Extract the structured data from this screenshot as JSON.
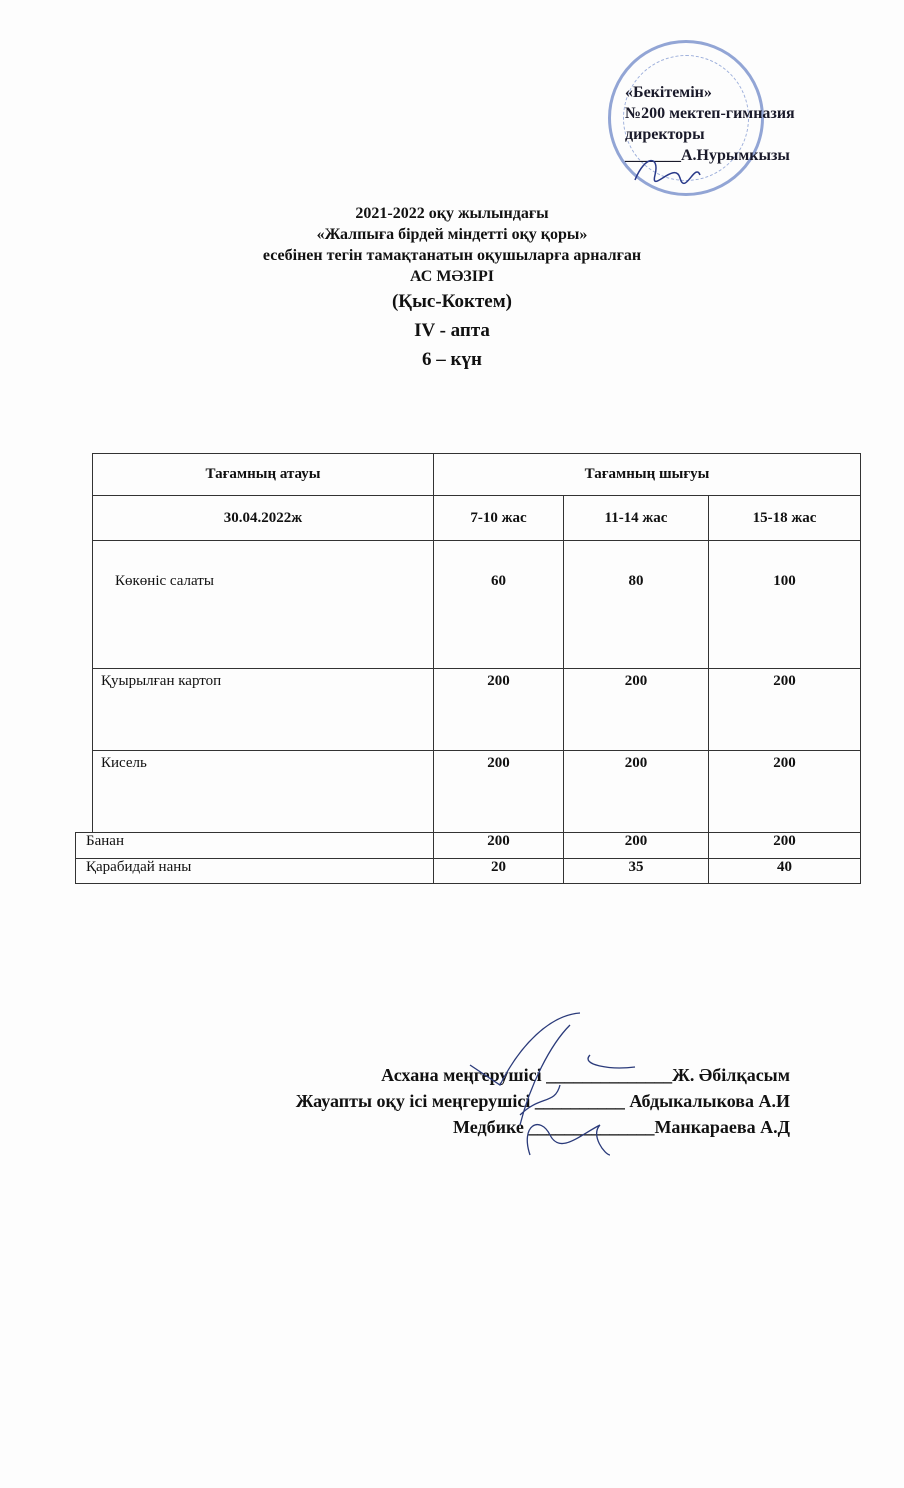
{
  "approval": {
    "line1": "«Бекітемін»",
    "line2": "№200 мектеп-гимназия",
    "line3": "директоры",
    "line4": "_______А.Нурымкызы"
  },
  "title": {
    "line1": "2021-2022 оқу жылындағы",
    "line2": "«Жалпыға бірдей міндетті оқу қоры»",
    "line3": "есебінен тегін тамақтанатын оқушыларға арналған",
    "line4": "АС МӘЗІРІ",
    "line5": "(Қыс-Коктем)",
    "line6": "IV - апта",
    "line7": "6 – күн"
  },
  "table": {
    "header_name": "Тағамның атауы",
    "header_output": "Тағамның шығуы",
    "date": "30.04.2022ж",
    "ages": [
      "7-10 жас",
      "11-14 жас",
      "15-18 жас"
    ],
    "rows": [
      {
        "name": "Көкөніс салаты",
        "values": [
          "60",
          "80",
          "100"
        ]
      },
      {
        "name": "Қуырылған картоп",
        "values": [
          "200",
          "200",
          "200"
        ]
      },
      {
        "name": "Кисель",
        "values": [
          "200",
          "200",
          "200"
        ]
      },
      {
        "name": "Банан",
        "values": [
          "200",
          "200",
          "200"
        ]
      },
      {
        "name": "Қарабидай наны",
        "values": [
          "20",
          "35",
          "40"
        ]
      }
    ]
  },
  "signatures": [
    {
      "role": "Асхана меңгерушісі",
      "line": "______________",
      "name": "Ж. Әбілқасым"
    },
    {
      "role": "Жауапты оқу ісі меңгерушісі",
      "line": "__________",
      "name": "Абдыкалыкова А.И"
    },
    {
      "role": "Медбике",
      "line": "______________",
      "name": "Манкараева А.Д"
    }
  ],
  "stamp_color": "#6f88c8"
}
